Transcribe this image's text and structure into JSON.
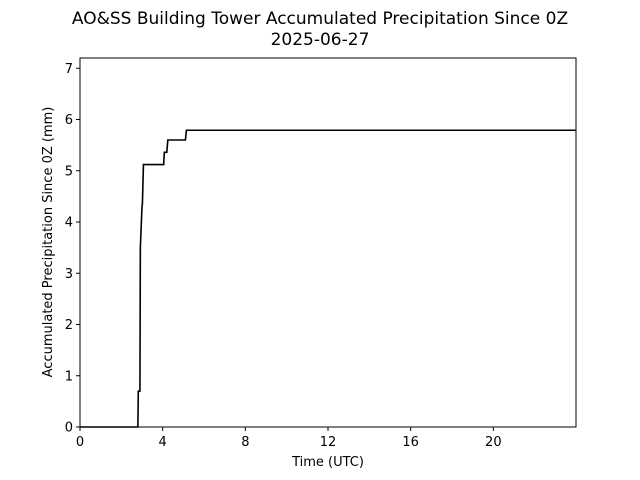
{
  "chart_data": {
    "type": "line",
    "title": "AO&SS Building Tower Accumulated Precipitation Since 0Z",
    "subtitle": "2025-06-27",
    "xlabel": "Time (UTC)",
    "ylabel": "Accumulated Precipitation Since 0Z (mm)",
    "xlim": [
      0,
      24
    ],
    "ylim": [
      0,
      7.2
    ],
    "x_ticks": [
      0,
      4,
      8,
      12,
      16,
      20
    ],
    "y_ticks": [
      0,
      1,
      2,
      3,
      4,
      5,
      6,
      7
    ],
    "grid": false,
    "line_color": "#000000",
    "series": [
      {
        "x": [
          0,
          2.8,
          2.82,
          2.9,
          2.92,
          3.0,
          3.02,
          3.07,
          3.1,
          4.05,
          4.08,
          4.2,
          4.25,
          5.1,
          5.15,
          24
        ],
        "values": [
          0,
          0,
          0.7,
          0.7,
          3.5,
          4.3,
          4.35,
          5.12,
          5.12,
          5.12,
          5.36,
          5.36,
          5.6,
          5.6,
          5.79,
          5.79
        ]
      }
    ]
  }
}
